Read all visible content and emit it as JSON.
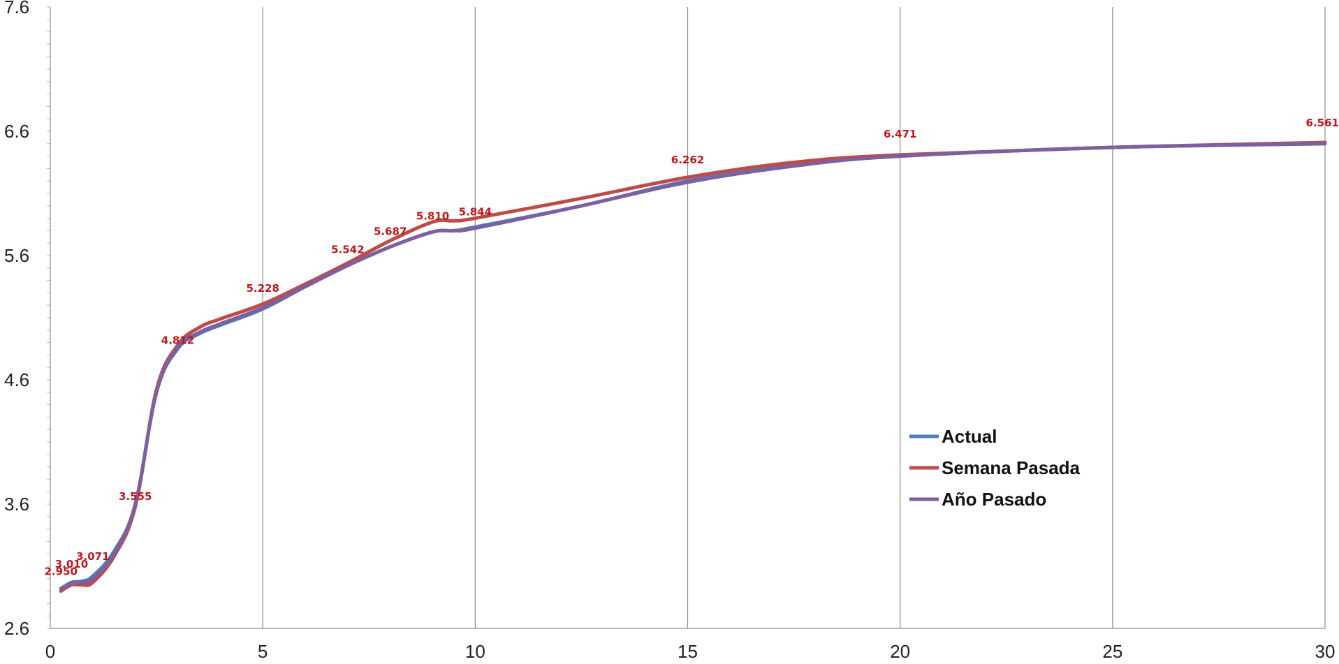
{
  "chart_data": {
    "type": "line",
    "title": "",
    "xlabel": "",
    "ylabel": "",
    "xlim": [
      0,
      30
    ],
    "ylim": [
      2.6,
      7.6
    ],
    "x_ticks": [
      "0",
      "5",
      "10",
      "15",
      "20",
      "25",
      "30"
    ],
    "y_ticks": [
      "2.6",
      "3.6",
      "4.6",
      "5.6",
      "6.6",
      "7.6"
    ],
    "grid": "vertical",
    "legend_position": "center-right",
    "series": [
      {
        "name": "Actual",
        "color": "#4a7ebb",
        "x": [
          0.25,
          0.5,
          0.75,
          1.0,
          1.5,
          2.0,
          2.5,
          3.0,
          3.5,
          4.0,
          5.0,
          6.0,
          7.0,
          8.0,
          9.0,
          9.5,
          10.0,
          12.5,
          15.0,
          17.5,
          20.0,
          25.0,
          30.0
        ],
        "y": [
          2.92,
          2.97,
          2.98,
          3.02,
          3.22,
          3.6,
          4.5,
          4.85,
          4.97,
          5.04,
          5.17,
          5.35,
          5.52,
          5.67,
          5.79,
          5.8,
          5.83,
          6.0,
          6.2,
          6.33,
          6.4,
          6.47,
          6.5
        ]
      },
      {
        "name": "Semana Pasada",
        "color": "#be4b48",
        "x": [
          0.25,
          0.5,
          0.75,
          1.0,
          1.5,
          2.0,
          2.5,
          3.0,
          3.5,
          4.0,
          5.0,
          6.0,
          7.0,
          8.0,
          9.0,
          9.5,
          10.0,
          12.5,
          15.0,
          17.5,
          20.0,
          25.0,
          30.0
        ],
        "y": [
          2.9,
          2.95,
          2.95,
          2.97,
          3.18,
          3.58,
          4.52,
          4.88,
          5.02,
          5.09,
          5.21,
          5.37,
          5.54,
          5.72,
          5.87,
          5.88,
          5.9,
          6.06,
          6.23,
          6.35,
          6.41,
          6.47,
          6.51
        ]
      },
      {
        "name": "Año Pasado",
        "color": "#7d60a0",
        "x": [
          0.25,
          0.5,
          0.75,
          1.0,
          1.5,
          2.0,
          2.5,
          3.0,
          3.5,
          4.0,
          5.0,
          6.0,
          7.0,
          8.0,
          9.0,
          9.5,
          10.0,
          12.5,
          15.0,
          17.5,
          20.0,
          25.0,
          30.0
        ],
        "y": [
          2.92,
          2.96,
          2.97,
          3.0,
          3.2,
          3.6,
          4.5,
          4.86,
          4.98,
          5.05,
          5.18,
          5.35,
          5.52,
          5.67,
          5.79,
          5.8,
          5.82,
          6.0,
          6.19,
          6.32,
          6.4,
          6.47,
          6.5
        ]
      }
    ],
    "data_labels": [
      {
        "x": 0.25,
        "y": 2.95,
        "text": "2.950"
      },
      {
        "x": 0.5,
        "y": 3.01,
        "text": "3.010"
      },
      {
        "x": 1.0,
        "y": 3.071,
        "text": "3.071"
      },
      {
        "x": 2.0,
        "y": 3.555,
        "text": "3.555"
      },
      {
        "x": 3.0,
        "y": 4.812,
        "text": "4.812"
      },
      {
        "x": 5.0,
        "y": 5.228,
        "text": "5.228"
      },
      {
        "x": 7.0,
        "y": 5.542,
        "text": "5.542"
      },
      {
        "x": 8.0,
        "y": 5.687,
        "text": "5.687"
      },
      {
        "x": 9.0,
        "y": 5.81,
        "text": "5.810"
      },
      {
        "x": 10.0,
        "y": 5.844,
        "text": "5.844"
      },
      {
        "x": 15.0,
        "y": 6.262,
        "text": "6.262"
      },
      {
        "x": 20.0,
        "y": 6.471,
        "text": "6.471"
      },
      {
        "x": 30.0,
        "y": 6.561,
        "text": "6.561"
      }
    ]
  }
}
